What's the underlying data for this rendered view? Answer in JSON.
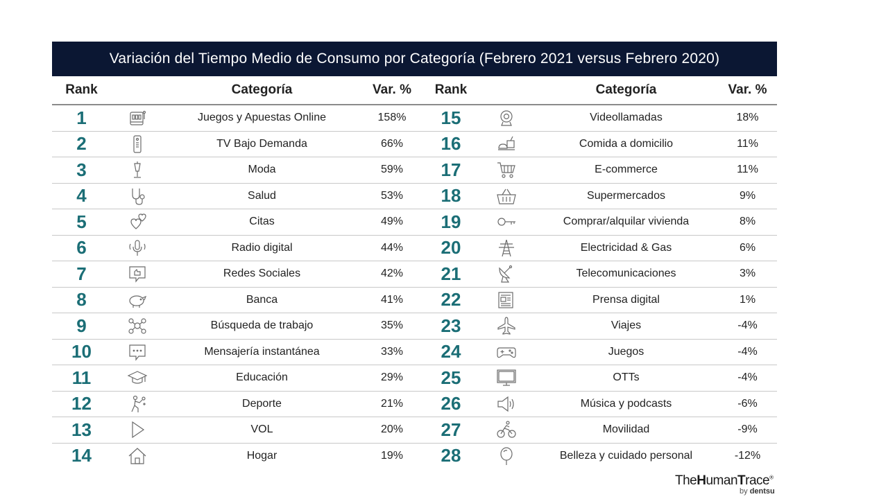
{
  "title": "Variación del Tiempo Medio de Consumo por Categoría (Febrero 2021 versus Febrero 2020)",
  "headers": {
    "rank": "Rank",
    "category": "Categoría",
    "var": "Var. %"
  },
  "chart_data": {
    "type": "table",
    "columns": [
      "Rank",
      "Categoría",
      "Var. %"
    ],
    "rows": [
      {
        "rank": "1",
        "icon": "slot-machine-icon",
        "category": "Juegos y Apuestas Online",
        "var": "158%"
      },
      {
        "rank": "2",
        "icon": "remote-control-icon",
        "category": "TV Bajo Demanda",
        "var": "66%"
      },
      {
        "rank": "3",
        "icon": "mannequin-icon",
        "category": "Moda",
        "var": "59%"
      },
      {
        "rank": "4",
        "icon": "stethoscope-icon",
        "category": "Salud",
        "var": "53%"
      },
      {
        "rank": "5",
        "icon": "hearts-icon",
        "category": "Citas",
        "var": "49%"
      },
      {
        "rank": "6",
        "icon": "microphone-icon",
        "category": "Radio digital",
        "var": "44%"
      },
      {
        "rank": "7",
        "icon": "like-bubble-icon",
        "category": "Redes Sociales",
        "var": "42%"
      },
      {
        "rank": "8",
        "icon": "piggy-bank-icon",
        "category": "Banca",
        "var": "41%"
      },
      {
        "rank": "9",
        "icon": "network-people-icon",
        "category": "Búsqueda de trabajo",
        "var": "35%"
      },
      {
        "rank": "10",
        "icon": "chat-bubble-icon",
        "category": "Mensajería instantánea",
        "var": "33%"
      },
      {
        "rank": "11",
        "icon": "graduation-cap-icon",
        "category": "Educación",
        "var": "29%"
      },
      {
        "rank": "12",
        "icon": "tennis-player-icon",
        "category": "Deporte",
        "var": "21%"
      },
      {
        "rank": "13",
        "icon": "play-icon",
        "category": "VOL",
        "var": "20%"
      },
      {
        "rank": "14",
        "icon": "house-icon",
        "category": "Hogar",
        "var": "19%"
      },
      {
        "rank": "15",
        "icon": "webcam-icon",
        "category": "Videollamadas",
        "var": "18%"
      },
      {
        "rank": "16",
        "icon": "food-delivery-icon",
        "category": "Comida a domicilio",
        "var": "11%"
      },
      {
        "rank": "17",
        "icon": "shopping-cart-icon",
        "category": "E-commerce",
        "var": "11%"
      },
      {
        "rank": "18",
        "icon": "shopping-basket-icon",
        "category": "Supermercados",
        "var": "9%"
      },
      {
        "rank": "19",
        "icon": "key-icon",
        "category": "Comprar/alquilar vivienda",
        "var": "8%"
      },
      {
        "rank": "20",
        "icon": "power-tower-icon",
        "category": "Electricidad & Gas",
        "var": "6%"
      },
      {
        "rank": "21",
        "icon": "satellite-dish-icon",
        "category": "Telecomunicaciones",
        "var": "3%"
      },
      {
        "rank": "22",
        "icon": "newspaper-icon",
        "category": "Prensa digital",
        "var": "1%"
      },
      {
        "rank": "23",
        "icon": "airplane-icon",
        "category": "Viajes",
        "var": "-4%"
      },
      {
        "rank": "24",
        "icon": "gamepad-icon",
        "category": "Juegos",
        "var": "-4%"
      },
      {
        "rank": "25",
        "icon": "tv-screen-icon",
        "category": "OTTs",
        "var": "-4%"
      },
      {
        "rank": "26",
        "icon": "speaker-icon",
        "category": "Música y podcasts",
        "var": "-6%"
      },
      {
        "rank": "27",
        "icon": "cyclist-icon",
        "category": "Movilidad",
        "var": "-9%"
      },
      {
        "rank": "28",
        "icon": "mirror-icon",
        "category": "Belleza y cuidado personal",
        "var": "-12%"
      }
    ]
  },
  "logo": {
    "part1": "The",
    "part2": "H",
    "part3": "uman",
    "part4": "T",
    "part5": "race",
    "mark": "®",
    "by": "by",
    "company": "dentsu"
  }
}
